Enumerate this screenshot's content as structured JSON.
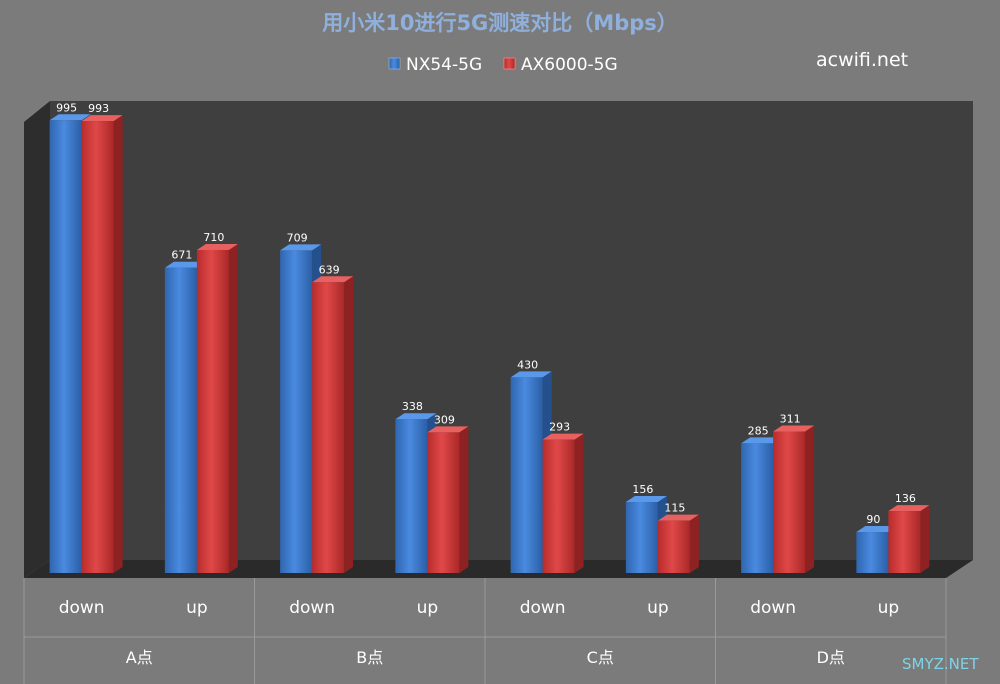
{
  "chart_data": {
    "type": "bar",
    "title": "用小米10进行5G测速对比（Mbps）",
    "groups": [
      "A点",
      "B点",
      "C点",
      "D点"
    ],
    "categories": [
      "down",
      "up",
      "down",
      "up",
      "down",
      "up",
      "down",
      "up"
    ],
    "series": [
      {
        "name": "NX54-5G",
        "values": [
          995,
          671,
          709,
          338,
          430,
          156,
          285,
          90
        ]
      },
      {
        "name": "AX6000-5G",
        "values": [
          993,
          710,
          639,
          309,
          293,
          115,
          311,
          136
        ]
      }
    ],
    "ylim": [
      0,
      1000
    ],
    "grid": false,
    "legend": "top-center",
    "colors": {
      "background": "#7b7b7b",
      "plot_back": "#3f3f3f",
      "plot_side": "#2d2d2d",
      "plot_floor": "#2a2a2a",
      "title": "#8fb0dd",
      "NX54-5G": "#3a78c8",
      "AX6000-5G": "#cf3a3a",
      "label_text": "#ffffff"
    }
  },
  "watermarks": {
    "top_right": "acwifi.net",
    "bottom_right": "SMYZ.NET"
  }
}
